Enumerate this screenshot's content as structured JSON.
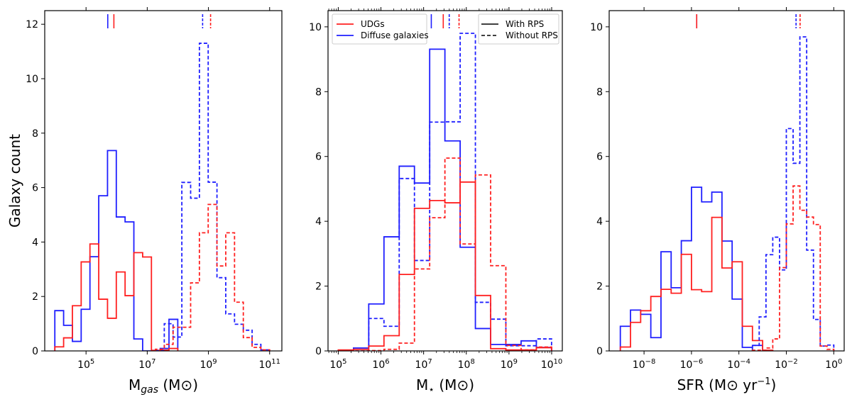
{
  "ylabel": "Galaxy count",
  "colors": {
    "udg": "#ff2020",
    "diffuse": "#1f1fff",
    "axis": "#000000"
  },
  "legend_sample": {
    "entries": [
      {
        "label": "UDGs",
        "color": "#ff2020"
      },
      {
        "label": "Diffuse galaxies",
        "color": "#1f1fff"
      }
    ]
  },
  "legend_rps": {
    "entries": [
      {
        "label": "With RPS",
        "style": "solid"
      },
      {
        "label": "Without RPS",
        "style": "dashed"
      }
    ]
  },
  "chart_data": [
    {
      "type": "histogram-step",
      "xlabel": {
        "main": "M",
        "sub": "gas",
        "unit": " (M⊙)"
      },
      "xscale": "log10",
      "xlim_log10": [
        3.65,
        11.4
      ],
      "ylim": [
        0,
        12.5
      ],
      "yticks": [
        0,
        2,
        4,
        6,
        8,
        10,
        12
      ],
      "xticks": [
        {
          "base": "10",
          "exp": "5",
          "log": 5
        },
        {
          "base": "10",
          "exp": "7",
          "log": 7
        },
        {
          "base": "10",
          "exp": "9",
          "log": 9
        },
        {
          "base": "10",
          "exp": "11",
          "log": 11
        }
      ],
      "minor_ticks": false,
      "series": [
        {
          "name": "Diffuse galaxies, with RPS",
          "color": "diffuse",
          "dashed": false,
          "bin_start_log10": 3.98,
          "bin_width_log10": 0.287,
          "values": [
            1.48,
            0.94,
            0.35,
            1.53,
            3.46,
            5.7,
            7.36,
            4.92,
            4.74,
            0.44,
            0,
            0.02,
            0.09,
            1.16
          ]
        },
        {
          "name": "UDGs, with RPS",
          "color": "udg",
          "dashed": false,
          "bin_start_log10": 3.98,
          "bin_width_log10": 0.287,
          "values": [
            0.15,
            0.48,
            1.66,
            3.27,
            3.93,
            1.9,
            1.2,
            2.9,
            2.03,
            3.61,
            3.45,
            0.02,
            0.03,
            0.09
          ]
        },
        {
          "name": "Diffuse galaxies, without RPS",
          "color": "diffuse",
          "dashed": true,
          "bin_start_log10": 7.27,
          "bin_width_log10": 0.287,
          "values": [
            0.01,
            1.0,
            0.51,
            6.19,
            5.61,
            11.3,
            6.2,
            2.69,
            1.36,
            0.98,
            0.76,
            0.24,
            0.04
          ]
        },
        {
          "name": "UDGs, without RPS",
          "color": "udg",
          "dashed": true,
          "bin_start_log10": 7.27,
          "bin_width_log10": 0.287,
          "values": [
            0.06,
            0.24,
            0.87,
            0.87,
            2.5,
            4.34,
            5.38,
            3.12,
            4.34,
            1.79,
            0.49,
            0.13,
            0.04
          ]
        }
      ],
      "medians_log10": [
        {
          "color": "diffuse",
          "dashed": false,
          "value": 5.71
        },
        {
          "color": "udg",
          "dashed": false,
          "value": 5.91
        },
        {
          "color": "diffuse",
          "dashed": true,
          "value": 8.81
        },
        {
          "color": "udg",
          "dashed": true,
          "value": 9.07
        }
      ]
    },
    {
      "type": "histogram-step",
      "xlabel": {
        "main": "M",
        "sub": "⋆",
        "unit": " (M⊙)"
      },
      "xscale": "log10",
      "xlim_log10": [
        4.76,
        10.25
      ],
      "ylim": [
        0,
        10.5
      ],
      "yticks": [
        0,
        2,
        4,
        6,
        8,
        10
      ],
      "xticks": [
        {
          "base": "10",
          "exp": "5",
          "log": 5
        },
        {
          "base": "10",
          "exp": "6",
          "log": 6
        },
        {
          "base": "10",
          "exp": "7",
          "log": 7
        },
        {
          "base": "10",
          "exp": "8",
          "log": 8
        },
        {
          "base": "10",
          "exp": "9",
          "log": 9
        },
        {
          "base": "10",
          "exp": "10",
          "log": 10
        }
      ],
      "minor_ticks": true,
      "series": [
        {
          "name": "Diffuse galaxies, with RPS",
          "color": "diffuse",
          "dashed": false,
          "bin_start_log10": 5.0,
          "bin_width_log10": 0.357,
          "values": [
            0.02,
            0.09,
            1.45,
            3.52,
            5.7,
            5.18,
            9.31,
            6.48,
            3.2,
            0.69,
            0.2,
            0.2,
            0.31,
            0.11
          ]
        },
        {
          "name": "Diffuse galaxies, without RPS",
          "color": "diffuse",
          "dashed": true,
          "bin_start_log10": 5.0,
          "bin_width_log10": 0.357,
          "values": [
            0,
            0,
            1.0,
            0.76,
            5.32,
            2.79,
            7.06,
            7.07,
            9.8,
            1.5,
            0.98,
            0.16,
            0.16,
            0.37
          ]
        },
        {
          "name": "UDGs, with RPS",
          "color": "udg",
          "dashed": false,
          "bin_start_log10": 5.0,
          "bin_width_log10": 0.357,
          "values": [
            0.03,
            0.05,
            0.15,
            0.47,
            2.36,
            4.4,
            4.64,
            4.57,
            5.21,
            1.71,
            0.07,
            0.03,
            0.03,
            0.1
          ]
        },
        {
          "name": "UDGs, without RPS",
          "color": "udg",
          "dashed": true,
          "bin_start_log10": 5.0,
          "bin_width_log10": 0.357,
          "values": [
            0,
            0,
            0.01,
            0.05,
            0.24,
            2.53,
            4.11,
            5.95,
            3.3,
            5.43,
            2.63,
            0.17,
            0.03,
            0.12
          ]
        }
      ],
      "medians_log10": [
        {
          "color": "diffuse",
          "dashed": false,
          "value": 7.18
        },
        {
          "color": "udg",
          "dashed": false,
          "value": 7.46
        },
        {
          "color": "diffuse",
          "dashed": true,
          "value": 7.6
        },
        {
          "color": "udg",
          "dashed": true,
          "value": 7.83
        }
      ]
    },
    {
      "type": "histogram-step",
      "xlabel": {
        "main": "SFR (M⊙ yr",
        "sup": "−1",
        "unit": ")"
      },
      "xscale": "log10",
      "xlim_log10": [
        -9.47,
        0.44
      ],
      "ylim": [
        0,
        10.5
      ],
      "yticks": [
        0,
        2,
        4,
        6,
        8,
        10
      ],
      "xticks": [
        {
          "base": "10",
          "exp": "−8",
          "log": -8
        },
        {
          "base": "10",
          "exp": "−6",
          "log": -6
        },
        {
          "base": "10",
          "exp": "−4",
          "log": -4
        },
        {
          "base": "10",
          "exp": "−2",
          "log": -2
        },
        {
          "base": "10",
          "exp": "0",
          "log": 0
        }
      ],
      "minor_ticks": false,
      "series": [
        {
          "name": "Diffuse galaxies, with RPS",
          "color": "diffuse",
          "dashed": false,
          "bin_start_log10": -9.0,
          "bin_width_log10": 0.4286,
          "values": [
            0.76,
            1.26,
            1.13,
            0.41,
            3.06,
            1.95,
            3.4,
            5.05,
            4.6,
            4.9,
            3.39,
            1.6,
            0.11,
            0.17
          ]
        },
        {
          "name": "UDGs, with RPS",
          "color": "udg",
          "dashed": false,
          "bin_start_log10": -9.0,
          "bin_width_log10": 0.4286,
          "values": [
            0.12,
            0.88,
            1.24,
            1.68,
            1.9,
            1.78,
            2.98,
            1.89,
            1.83,
            4.12,
            2.56,
            2.75,
            0.76,
            0.32,
            0.02
          ]
        },
        {
          "name": "Diffuse galaxies, without RPS",
          "color": "diffuse",
          "dashed": true,
          "bin_start_log10": -3.43,
          "bin_width_log10": 0.286,
          "values": [
            0.17,
            1.05,
            2.97,
            3.51,
            2.5,
            6.86,
            5.79,
            9.69,
            3.11,
            0.97,
            0.15,
            0.18
          ]
        },
        {
          "name": "UDGs, without RPS",
          "color": "udg",
          "dashed": true,
          "bin_start_log10": -3.43,
          "bin_width_log10": 0.286,
          "values": [
            0.02,
            0.02,
            0.09,
            0.37,
            2.57,
            3.92,
            5.09,
            4.34,
            4.13,
            3.9,
            0.15,
            0.05
          ]
        }
      ],
      "medians_log10": [
        {
          "color": "diffuse",
          "dashed": false,
          "value": -5.78
        },
        {
          "color": "udg",
          "dashed": false,
          "value": -5.78
        },
        {
          "color": "diffuse",
          "dashed": true,
          "value": -1.59
        },
        {
          "color": "udg",
          "dashed": true,
          "value": -1.42
        }
      ]
    }
  ]
}
